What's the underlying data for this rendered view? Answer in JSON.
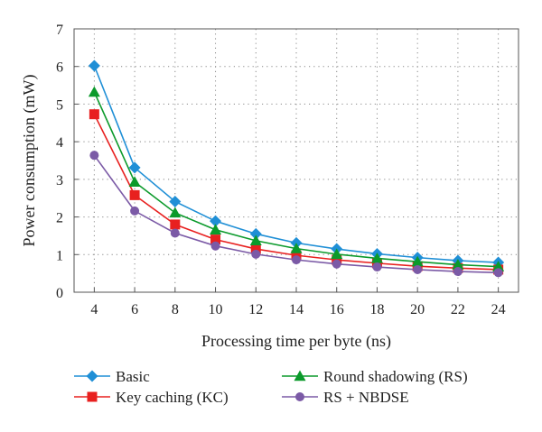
{
  "chart_data": {
    "type": "line",
    "title": "",
    "xlabel": "Processing time per byte (ns)",
    "ylabel": "Power consumption (mW)",
    "xlim": [
      3,
      25
    ],
    "ylim": [
      0,
      7
    ],
    "x_ticks": [
      4,
      6,
      8,
      10,
      12,
      14,
      16,
      18,
      20,
      22,
      24
    ],
    "y_ticks": [
      0,
      1,
      2,
      3,
      4,
      5,
      6,
      7
    ],
    "grid": true,
    "legend_position": "bottom",
    "x": [
      4,
      6,
      8,
      10,
      12,
      14,
      16,
      18,
      20,
      22,
      24
    ],
    "series": [
      {
        "name": "Basic",
        "marker": "diamond",
        "color": "#1f8fd6",
        "values": [
          6.02,
          3.31,
          2.41,
          1.89,
          1.55,
          1.31,
          1.15,
          1.02,
          0.92,
          0.84,
          0.79
        ]
      },
      {
        "name": "Key caching (KC)",
        "marker": "square",
        "color": "#e8201f",
        "values": [
          4.73,
          2.58,
          1.8,
          1.4,
          1.15,
          0.98,
          0.86,
          0.77,
          0.69,
          0.64,
          0.6
        ]
      },
      {
        "name": "Round shadowing (RS)",
        "marker": "triangle",
        "color": "#0b9a2b",
        "values": [
          5.32,
          2.93,
          2.11,
          1.66,
          1.37,
          1.16,
          1.01,
          0.9,
          0.81,
          0.73,
          0.68
        ]
      },
      {
        "name": "RS + NBDSE",
        "marker": "circle",
        "color": "#7b5aa6",
        "values": [
          3.64,
          2.16,
          1.57,
          1.23,
          1.01,
          0.86,
          0.75,
          0.67,
          0.6,
          0.55,
          0.52
        ]
      }
    ]
  }
}
